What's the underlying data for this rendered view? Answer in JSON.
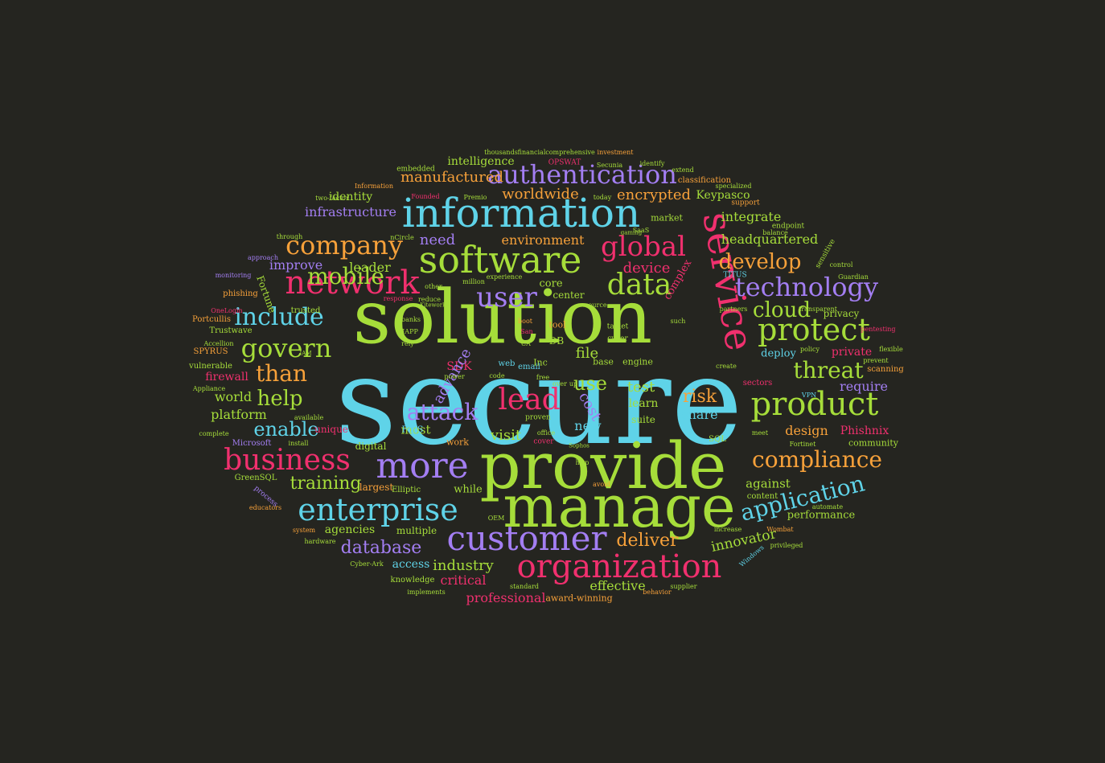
{
  "colors": {
    "background": "#252520",
    "cyan": "#5fd3e8",
    "green": "#a6dd3a",
    "pink": "#f0306e",
    "purple": "#a37ef2",
    "orange": "#f7a13a"
  },
  "words": [
    {
      "text": "secure",
      "color": "cyan"
    },
    {
      "text": "solution",
      "color": "green"
    },
    {
      "text": "provide",
      "color": "green"
    },
    {
      "text": "manage",
      "color": "green"
    },
    {
      "text": "information",
      "color": "cyan"
    },
    {
      "text": "software",
      "color": "green"
    },
    {
      "text": "service",
      "color": "pink"
    },
    {
      "text": "network",
      "color": "pink"
    },
    {
      "text": "more",
      "color": "purple"
    },
    {
      "text": "business",
      "color": "pink"
    },
    {
      "text": "enterprise",
      "color": "cyan"
    },
    {
      "text": "customer",
      "color": "purple"
    },
    {
      "text": "organization",
      "color": "pink"
    },
    {
      "text": "product",
      "color": "green"
    },
    {
      "text": "protect",
      "color": "green"
    },
    {
      "text": "technology",
      "color": "purple"
    },
    {
      "text": "data",
      "color": "green"
    },
    {
      "text": "company",
      "color": "orange"
    },
    {
      "text": "authentication",
      "color": "purple"
    },
    {
      "text": "global",
      "color": "pink"
    },
    {
      "text": "compliance",
      "color": "orange"
    },
    {
      "text": "application",
      "color": "cyan"
    },
    {
      "text": "lead",
      "color": "pink"
    },
    {
      "text": "govern",
      "color": "green"
    },
    {
      "text": "include",
      "color": "cyan"
    },
    {
      "text": "user",
      "color": "purple"
    },
    {
      "text": "attack",
      "color": "purple"
    },
    {
      "text": "threat",
      "color": "green"
    },
    {
      "text": "develop",
      "color": "orange"
    },
    {
      "text": "mobile",
      "color": "green"
    },
    {
      "text": "cloud",
      "color": "green"
    },
    {
      "text": "enable",
      "color": "cyan"
    },
    {
      "text": "help",
      "color": "green"
    },
    {
      "text": "than",
      "color": "orange"
    },
    {
      "text": "database",
      "color": "purple"
    },
    {
      "text": "deliver",
      "color": "orange"
    },
    {
      "text": "training",
      "color": "green"
    },
    {
      "text": "risk",
      "color": "orange"
    },
    {
      "text": "use",
      "color": "green"
    },
    {
      "text": "encrypted",
      "color": "orange"
    },
    {
      "text": "worldwide",
      "color": "orange"
    },
    {
      "text": "infrastructure",
      "color": "purple"
    },
    {
      "text": "manufactured",
      "color": "orange"
    },
    {
      "text": "integrate",
      "color": "green"
    },
    {
      "text": "headquartered",
      "color": "green"
    },
    {
      "text": "environment",
      "color": "orange"
    },
    {
      "text": "device",
      "color": "pink"
    },
    {
      "text": "innovator",
      "color": "green"
    },
    {
      "text": "industry",
      "color": "green"
    },
    {
      "text": "professional",
      "color": "pink"
    },
    {
      "text": "effective",
      "color": "green"
    },
    {
      "text": "critical",
      "color": "pink"
    },
    {
      "text": "agencies",
      "color": "green"
    },
    {
      "text": "design",
      "color": "orange"
    },
    {
      "text": "Phishnix",
      "color": "pink"
    },
    {
      "text": "require",
      "color": "purple"
    },
    {
      "text": "platform",
      "color": "green"
    },
    {
      "text": "world",
      "color": "green"
    },
    {
      "text": "firewall",
      "color": "pink"
    },
    {
      "text": "identity",
      "color": "green"
    },
    {
      "text": "improve",
      "color": "purple"
    },
    {
      "text": "leader",
      "color": "green"
    },
    {
      "text": "Keypasco",
      "color": "green"
    },
    {
      "text": "intelligence",
      "color": "green"
    },
    {
      "text": "need",
      "color": "purple"
    },
    {
      "text": "cost",
      "color": "purple"
    },
    {
      "text": "test",
      "color": "green"
    },
    {
      "text": "visit",
      "color": "green"
    },
    {
      "text": "file",
      "color": "green"
    },
    {
      "text": "new",
      "color": "cyan"
    },
    {
      "text": "most",
      "color": "green"
    },
    {
      "text": "share",
      "color": "cyan"
    },
    {
      "text": "against",
      "color": "green"
    },
    {
      "text": "performance",
      "color": "green"
    },
    {
      "text": "SDK",
      "color": "pink"
    },
    {
      "text": "advance",
      "color": "purple"
    },
    {
      "text": "center",
      "color": "green"
    },
    {
      "text": "core",
      "color": "green"
    },
    {
      "text": "private",
      "color": "pink"
    },
    {
      "text": "deploy",
      "color": "cyan"
    },
    {
      "text": "privacy",
      "color": "green"
    },
    {
      "text": "learn",
      "color": "green"
    },
    {
      "text": "suite",
      "color": "green"
    },
    {
      "text": "complex",
      "color": "pink"
    },
    {
      "text": "access",
      "color": "cyan"
    },
    {
      "text": "while",
      "color": "green"
    },
    {
      "text": "largest",
      "color": "orange"
    },
    {
      "text": "multiple",
      "color": "green"
    },
    {
      "text": "unique",
      "color": "pink"
    },
    {
      "text": "digital",
      "color": "green"
    },
    {
      "text": "work",
      "color": "orange"
    },
    {
      "text": "community",
      "color": "green"
    },
    {
      "text": "content",
      "color": "green"
    },
    {
      "text": "award-winning",
      "color": "orange"
    },
    {
      "text": "knowledge",
      "color": "green"
    },
    {
      "text": "Elliptic",
      "color": "green"
    },
    {
      "text": "Fortune",
      "color": "green"
    },
    {
      "text": "Trustwave",
      "color": "green"
    },
    {
      "text": "Portcullis",
      "color": "orange"
    },
    {
      "text": "phishing",
      "color": "orange"
    },
    {
      "text": "SPYRUS",
      "color": "orange"
    },
    {
      "text": "vulnerable",
      "color": "green"
    },
    {
      "text": "GreenSQL",
      "color": "green"
    },
    {
      "text": "Microsoft",
      "color": "purple"
    },
    {
      "text": "scanning",
      "color": "orange"
    },
    {
      "text": "sectors",
      "color": "pink"
    },
    {
      "text": "tool",
      "color": "orange"
    },
    {
      "text": "base",
      "color": "green"
    },
    {
      "text": "engine",
      "color": "green"
    },
    {
      "text": "DB",
      "color": "green"
    },
    {
      "text": "Inc",
      "color": "green"
    },
    {
      "text": "FIPS",
      "color": "cyan"
    },
    {
      "text": "email",
      "color": "cyan"
    },
    {
      "text": "web",
      "color": "cyan"
    },
    {
      "text": "market",
      "color": "green"
    },
    {
      "text": "classification",
      "color": "orange"
    },
    {
      "text": "comprehensive",
      "color": "green"
    },
    {
      "text": "financial",
      "color": "green"
    },
    {
      "text": "thousands",
      "color": "green"
    },
    {
      "text": "investment",
      "color": "orange"
    },
    {
      "text": "embedded",
      "color": "green"
    },
    {
      "text": "OPSWAT",
      "color": "pink"
    },
    {
      "text": "Secunia",
      "color": "green"
    },
    {
      "text": "identify",
      "color": "green"
    },
    {
      "text": "extend",
      "color": "green"
    },
    {
      "text": "specialized",
      "color": "green"
    },
    {
      "text": "support",
      "color": "orange"
    },
    {
      "text": "endpoint",
      "color": "green"
    },
    {
      "text": "balance",
      "color": "green"
    },
    {
      "text": "sensitive",
      "color": "green"
    },
    {
      "text": "control",
      "color": "green"
    },
    {
      "text": "Guardian",
      "color": "green"
    },
    {
      "text": "TITUS",
      "color": "cyan"
    },
    {
      "text": "pentesting",
      "color": "pink"
    },
    {
      "text": "flexible",
      "color": "green"
    },
    {
      "text": "prevent",
      "color": "green"
    },
    {
      "text": "VPN",
      "color": "cyan"
    },
    {
      "text": "meet",
      "color": "green"
    },
    {
      "text": "Fortinet",
      "color": "green"
    },
    {
      "text": "SQL",
      "color": "green"
    },
    {
      "text": "automate",
      "color": "green"
    },
    {
      "text": "increase",
      "color": "green"
    },
    {
      "text": "Wombat",
      "color": "orange"
    },
    {
      "text": "privileged",
      "color": "green"
    },
    {
      "text": "Windows",
      "color": "cyan"
    },
    {
      "text": "supplier",
      "color": "green"
    },
    {
      "text": "behavior",
      "color": "orange"
    },
    {
      "text": "standard",
      "color": "green"
    },
    {
      "text": "implements",
      "color": "green"
    },
    {
      "text": "Cyber-Ark",
      "color": "green"
    },
    {
      "text": "educators",
      "color": "orange"
    },
    {
      "text": "hardware",
      "color": "green"
    },
    {
      "text": "system",
      "color": "orange"
    },
    {
      "text": "process",
      "color": "purple"
    },
    {
      "text": "complete",
      "color": "green"
    },
    {
      "text": "Appliance",
      "color": "green"
    },
    {
      "text": "Accellion",
      "color": "green"
    },
    {
      "text": "OneLogin",
      "color": "pink"
    },
    {
      "text": "monitoring",
      "color": "purple"
    },
    {
      "text": "approach",
      "color": "purple"
    },
    {
      "text": "through",
      "color": "green"
    },
    {
      "text": "nCircle",
      "color": "green"
    },
    {
      "text": "two-factor",
      "color": "green"
    },
    {
      "text": "Information",
      "color": "orange"
    },
    {
      "text": "Founded",
      "color": "pink"
    },
    {
      "text": "Premio",
      "color": "green"
    },
    {
      "text": "today",
      "color": "green"
    },
    {
      "text": "SaaS",
      "color": "green"
    },
    {
      "text": "million",
      "color": "green"
    },
    {
      "text": "experience",
      "color": "green"
    },
    {
      "text": "trusted",
      "color": "green"
    },
    {
      "text": "IAPP",
      "color": "green"
    },
    {
      "text": "banks",
      "color": "green"
    },
    {
      "text": "rely",
      "color": "green"
    },
    {
      "text": "other",
      "color": "green"
    },
    {
      "text": "response",
      "color": "pink"
    },
    {
      "text": "reduce",
      "color": "green"
    },
    {
      "text": "boot",
      "color": "orange"
    },
    {
      "text": "San",
      "color": "pink"
    },
    {
      "text": "CA",
      "color": "green"
    },
    {
      "text": "over",
      "color": "green"
    },
    {
      "text": "up",
      "color": "green"
    },
    {
      "text": "office",
      "color": "green"
    },
    {
      "text": "cover",
      "color": "pink"
    },
    {
      "text": "free",
      "color": "green"
    },
    {
      "text": "proven",
      "color": "green"
    },
    {
      "text": "http",
      "color": "green"
    },
    {
      "text": "avoid",
      "color": "orange"
    },
    {
      "text": "OEM",
      "color": "green"
    },
    {
      "text": "cyber",
      "color": "green"
    },
    {
      "text": "tablet",
      "color": "green"
    },
    {
      "text": "source",
      "color": "green"
    },
    {
      "text": "such",
      "color": "green"
    },
    {
      "text": "partners",
      "color": "green"
    },
    {
      "text": "transparent",
      "color": "green"
    },
    {
      "text": "create",
      "color": "green"
    },
    {
      "text": "policy",
      "color": "green"
    },
    {
      "text": "available",
      "color": "green"
    },
    {
      "text": "install",
      "color": "green"
    },
    {
      "text": "code",
      "color": "green"
    },
    {
      "text": "power",
      "color": "green"
    },
    {
      "text": "Kiteworks",
      "color": "green"
    },
    {
      "text": "IAM",
      "color": "green"
    },
    {
      "text": "gaming",
      "color": "green"
    },
    {
      "text": "Sophos",
      "color": "green"
    }
  ]
}
